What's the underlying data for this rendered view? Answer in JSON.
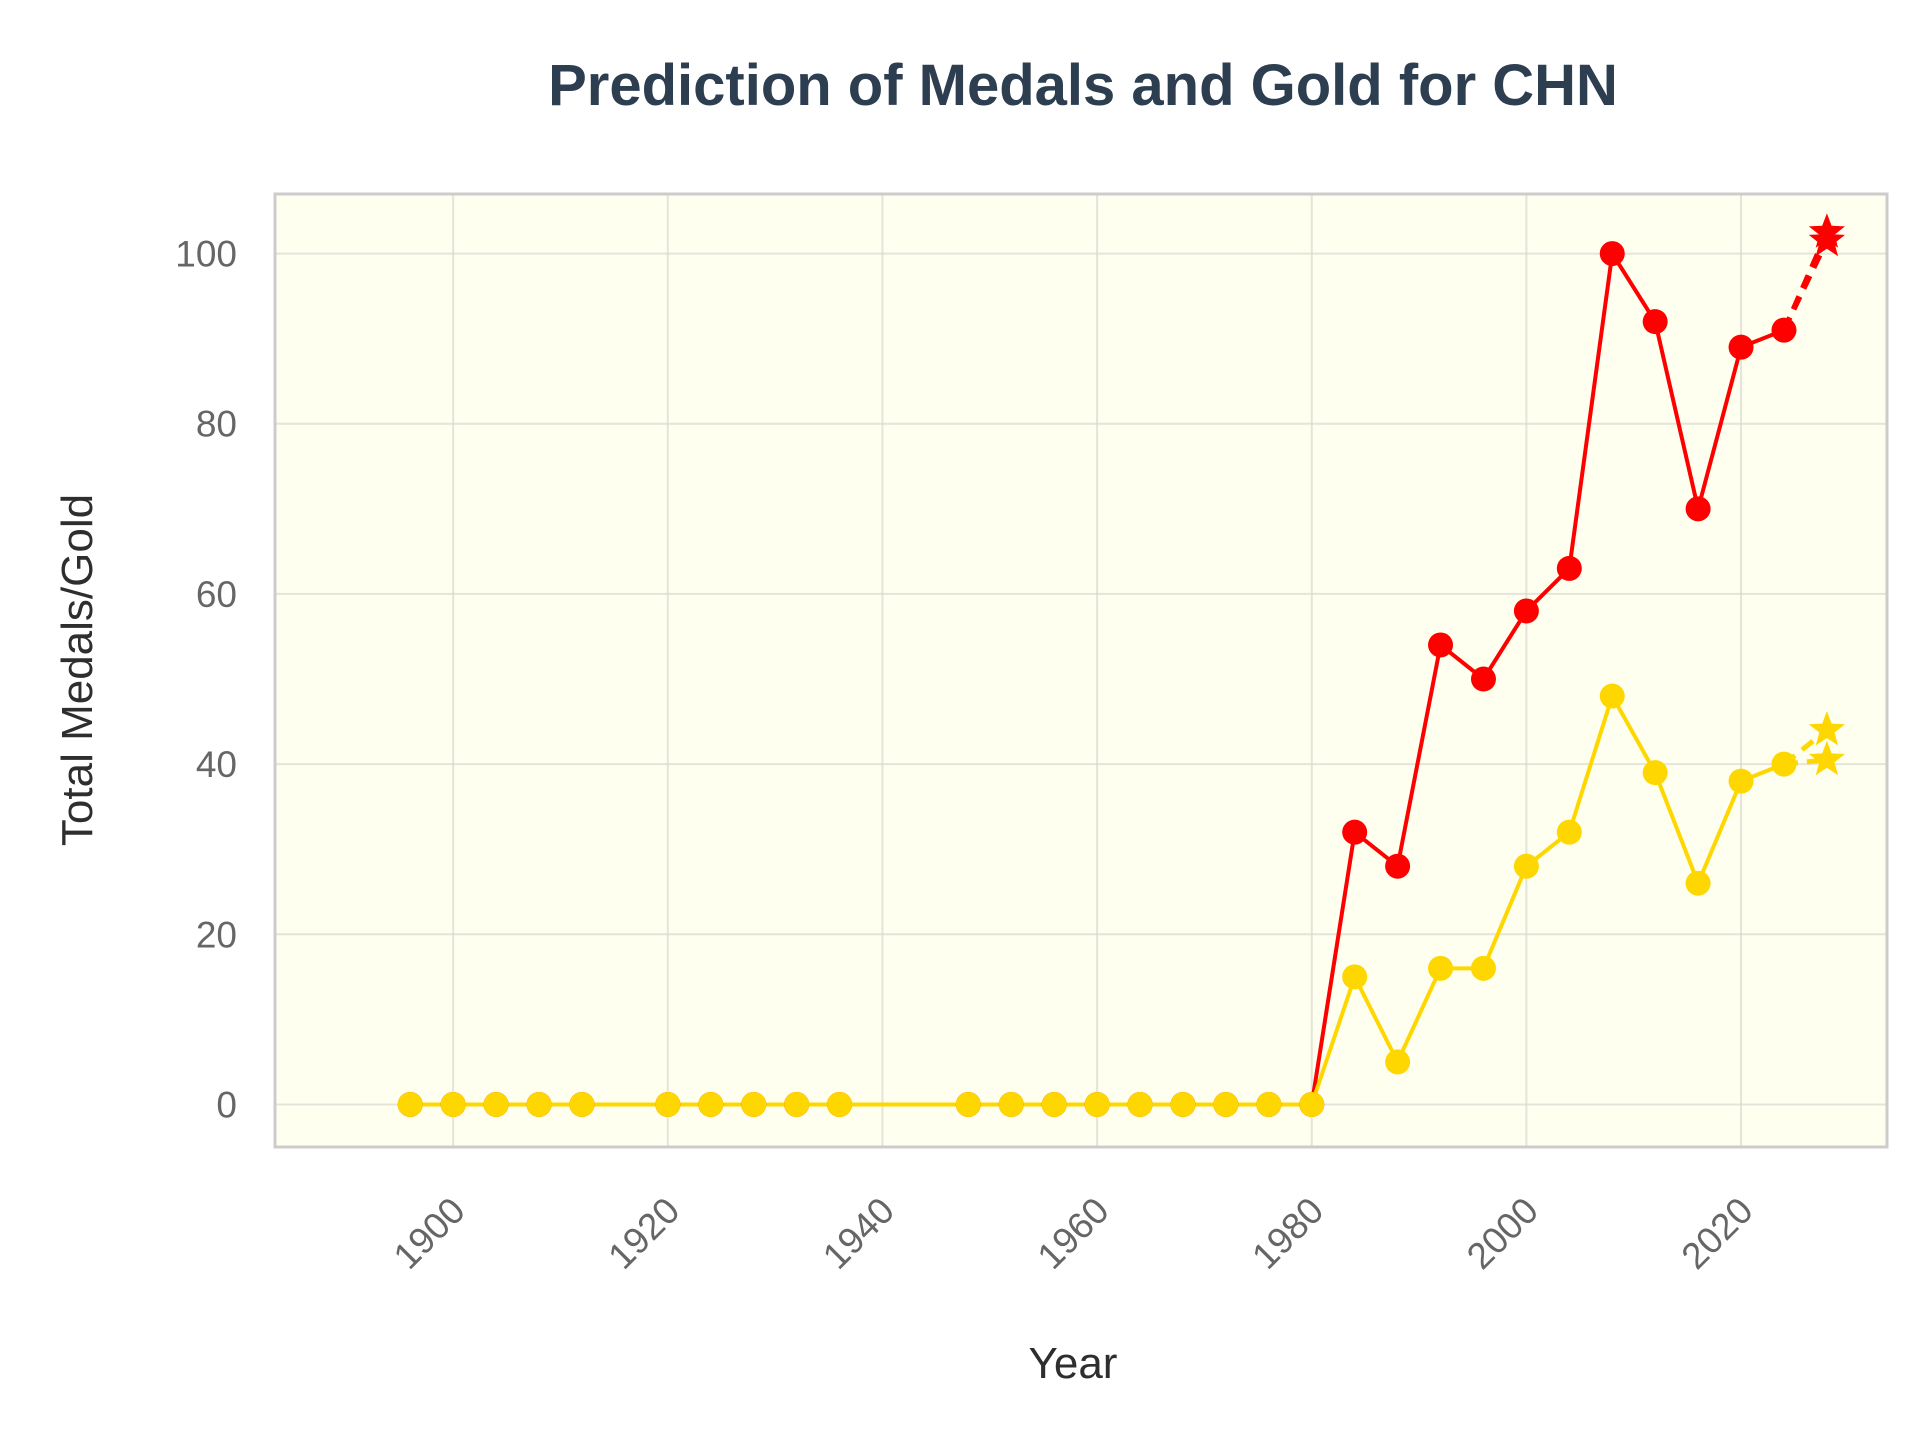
{
  "chart_data": {
    "type": "line",
    "title": "Prediction of Medals and Gold for CHN",
    "xlabel": "Year",
    "ylabel": "Total Medals/Gold",
    "xlim": [
      1883.4,
      2033.6
    ],
    "ylim": [
      -5,
      107
    ],
    "x_ticks": [
      1900,
      1920,
      1940,
      1960,
      1980,
      2000,
      2020
    ],
    "y_ticks": [
      0,
      20,
      40,
      60,
      80,
      100
    ],
    "grid": true,
    "legend": "none",
    "colors": {
      "plot_background": "#fffff0",
      "frame": "#cccccc",
      "grid": "#d9d9d0"
    },
    "series": [
      {
        "role": "total",
        "color": "#ff0000",
        "x": [
          1896,
          1900,
          1904,
          1908,
          1912,
          1920,
          1924,
          1928,
          1932,
          1936,
          1948,
          1952,
          1956,
          1960,
          1964,
          1968,
          1972,
          1976,
          1980,
          1984,
          1988,
          1992,
          1996,
          2000,
          2004,
          2008,
          2012,
          2016,
          2020,
          2024
        ],
        "values": [
          0,
          0,
          0,
          0,
          0,
          0,
          0,
          0,
          0,
          0,
          0,
          0,
          0,
          0,
          0,
          0,
          0,
          0,
          0,
          32,
          28,
          54,
          50,
          58,
          63,
          100,
          92,
          70,
          89,
          91
        ]
      },
      {
        "role": "gold",
        "color": "#ffd700",
        "x": [
          1896,
          1900,
          1904,
          1908,
          1912,
          1920,
          1924,
          1928,
          1932,
          1936,
          1948,
          1952,
          1956,
          1960,
          1964,
          1968,
          1972,
          1976,
          1980,
          1984,
          1988,
          1992,
          1996,
          2000,
          2004,
          2008,
          2012,
          2016,
          2020,
          2024
        ],
        "values": [
          0,
          0,
          0,
          0,
          0,
          0,
          0,
          0,
          0,
          0,
          0,
          0,
          0,
          0,
          0,
          0,
          0,
          0,
          0,
          15,
          5,
          16,
          16,
          28,
          32,
          48,
          39,
          26,
          38,
          40
        ]
      }
    ],
    "predictions": [
      {
        "role": "total-prediction",
        "color": "#ff0000",
        "x": 2028,
        "values": [
          102.5,
          101.5
        ]
      },
      {
        "role": "gold-prediction",
        "color": "#ffd700",
        "x": 2028,
        "values": [
          44,
          40.5
        ]
      }
    ]
  }
}
